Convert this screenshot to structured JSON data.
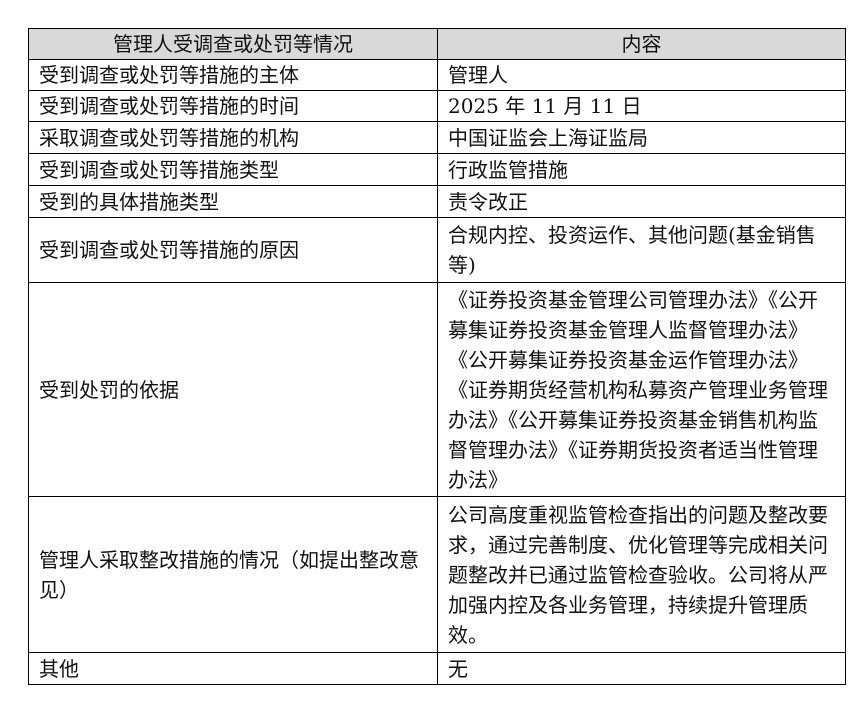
{
  "table": {
    "header": [
      "管理人受调查或处罚等情况",
      "内容"
    ],
    "rows": [
      [
        "受到调查或处罚等措施的主体",
        "管理人"
      ],
      [
        "受到调查或处罚等措施的时间",
        "2025 年 11 月 11 日"
      ],
      [
        "采取调查或处罚等措施的机构",
        "中国证监会上海证监局"
      ],
      [
        "受到调查或处罚等措施类型",
        "行政监管措施"
      ],
      [
        "受到的具体措施类型",
        "责令改正"
      ],
      [
        "受到调查或处罚等措施的原因",
        "合规内控、投资运作、其他问题(基金销售等)"
      ],
      [
        "受到处罚的依据",
        "《证券投资基金管理公司管理办法》《公开募集证券投资基金管理人监督管理办法》《公开募集证券投资基金运作管理办法》《证券期货经营机构私募资产管理业务管理办法》《公开募集证券投资基金销售机构监督管理办法》《证券期货投资者适当性管理办法》"
      ],
      [
        "管理人采取整改措施的情况（如提出整改意见）",
        "公司高度重视监管检查指出的问题及整改要求，通过完善制度、优化管理等完成相关问题整改并已通过监管检查验收。公司将从严加强内控及各业务管理，持续提升管理质效。"
      ],
      [
        "其他",
        "无"
      ]
    ]
  }
}
